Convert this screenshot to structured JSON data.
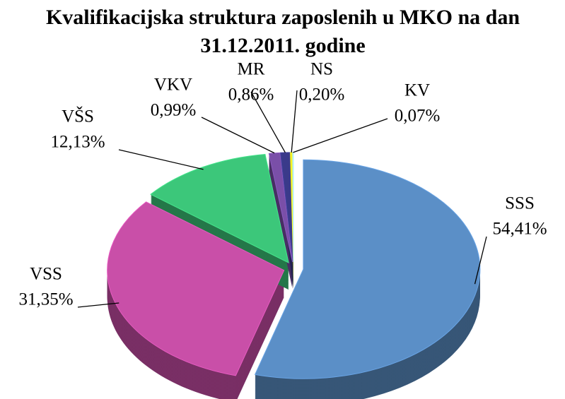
{
  "chart_data": {
    "type": "pie",
    "title": "Kvalifikacijska struktura zaposlenih u MKO na dan 31.12.2011. godine",
    "categories": [
      "SSS",
      "VSS",
      "VŠS",
      "VKV",
      "MR",
      "NS",
      "KV"
    ],
    "values": [
      54.41,
      31.35,
      12.13,
      0.99,
      0.86,
      0.2,
      0.07
    ],
    "value_labels": [
      "54,41%",
      "31,35%",
      "12,13%",
      "0,99%",
      "0,86%",
      "0,20%",
      "0,07%"
    ],
    "colors": [
      "#5b8fc7",
      "#c94fa8",
      "#3cc77a",
      "#7a4fa8",
      "#3a3a8a",
      "#f5f020",
      "#9ad0e0"
    ]
  }
}
